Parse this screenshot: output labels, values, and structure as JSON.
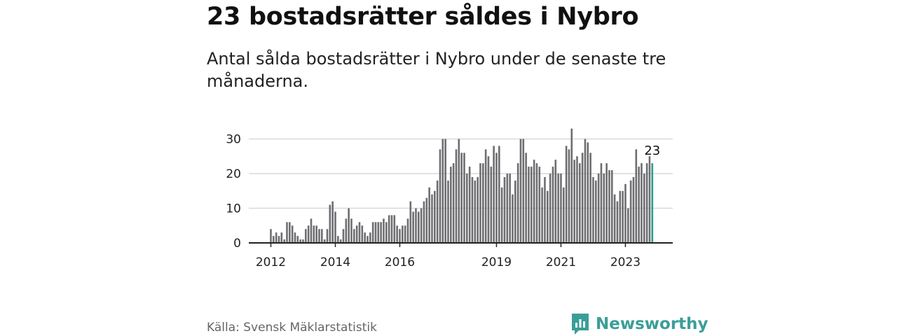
{
  "header": {
    "title": "23 bostadsrätter såldes i Nybro",
    "subtitle": "Antal sålda bostadsrätter i Nybro under de senaste tre månaderna."
  },
  "footer": {
    "source": "Källa: Svensk Mäklarstatistik",
    "brand": "Newsworthy"
  },
  "colors": {
    "bar": "#6e6e72",
    "highlight": "#2a9d8f",
    "grid": "#d9d9d9",
    "brand": "#3a9e98"
  },
  "chart_data": {
    "type": "bar",
    "title": "23 bostadsrätter såldes i Nybro",
    "xlabel": "",
    "ylabel": "",
    "ylim": [
      0,
      30
    ],
    "yticks": [
      0,
      10,
      20,
      30
    ],
    "grid": true,
    "x_tick_labels": [
      {
        "label": "2012",
        "index": 0
      },
      {
        "label": "2014",
        "index": 24
      },
      {
        "label": "2016",
        "index": 48
      },
      {
        "label": "2019",
        "index": 84
      },
      {
        "label": "2021",
        "index": 108
      },
      {
        "label": "2023",
        "index": 132
      }
    ],
    "highlight_label": "23",
    "values": [
      4,
      2,
      3,
      2,
      3,
      1,
      6,
      6,
      5,
      3,
      2,
      1,
      1,
      4,
      5,
      7,
      5,
      5,
      4,
      4,
      1,
      4,
      11,
      12,
      9,
      2,
      1,
      4,
      7,
      10,
      7,
      4,
      5,
      6,
      5,
      3,
      2,
      3,
      6,
      6,
      6,
      6,
      7,
      6,
      8,
      8,
      8,
      5,
      4,
      5,
      5,
      7,
      12,
      9,
      10,
      9,
      10,
      12,
      13,
      16,
      14,
      15,
      18,
      27,
      30,
      30,
      18,
      22,
      23,
      27,
      30,
      26,
      26,
      20,
      22,
      19,
      18,
      19,
      23,
      23,
      27,
      25,
      22,
      28,
      26,
      28,
      16,
      19,
      20,
      20,
      14,
      18,
      23,
      30,
      30,
      26,
      22,
      22,
      24,
      23,
      22,
      16,
      19,
      15,
      20,
      22,
      24,
      20,
      20,
      16,
      28,
      27,
      33,
      24,
      25,
      23,
      26,
      30,
      29,
      26,
      19,
      18,
      20,
      23,
      20,
      23,
      21,
      21,
      14,
      12,
      15,
      15,
      17,
      10,
      18,
      19,
      27,
      22,
      23,
      20,
      23,
      25,
      23
    ]
  }
}
